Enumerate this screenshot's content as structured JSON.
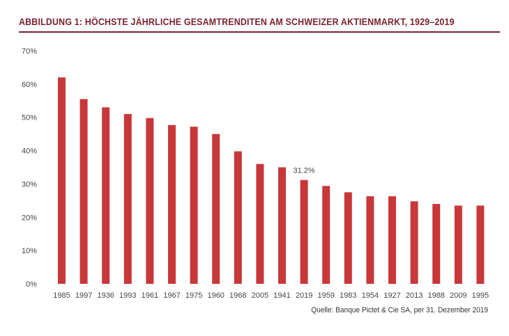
{
  "title": "ABBILDUNG 1: HÖCHSTE JÄHRLICHE GESAMTRENDITEN AM SCHWEIZER AKTIENMARKT, 1929–2019",
  "source": "Quelle: Banque Pictet & Cie SA, per 31. Dezember 2019",
  "colors": {
    "bar": "#c8383a",
    "title": "#7a2230",
    "text": "#444444"
  },
  "chart_data": {
    "type": "bar",
    "categories": [
      "1985",
      "1997",
      "1936",
      "1993",
      "1961",
      "1967",
      "1975",
      "1960",
      "1968",
      "2005",
      "1941",
      "2019",
      "1959",
      "1983",
      "1954",
      "1927",
      "2013",
      "1988",
      "2009",
      "1995"
    ],
    "values": [
      62.0,
      55.5,
      53.0,
      51.0,
      49.8,
      47.7,
      47.2,
      45.0,
      39.8,
      36.0,
      35.0,
      31.2,
      29.4,
      27.5,
      26.3,
      26.3,
      24.8,
      24.0,
      23.5,
      23.5
    ],
    "ylim": [
      0,
      70
    ],
    "yticks": [
      "0%",
      "10%",
      "20%",
      "30%",
      "40%",
      "50%",
      "60%",
      "70%"
    ],
    "annotation": {
      "category": "2019",
      "text": "31.2%"
    },
    "grid": false
  }
}
